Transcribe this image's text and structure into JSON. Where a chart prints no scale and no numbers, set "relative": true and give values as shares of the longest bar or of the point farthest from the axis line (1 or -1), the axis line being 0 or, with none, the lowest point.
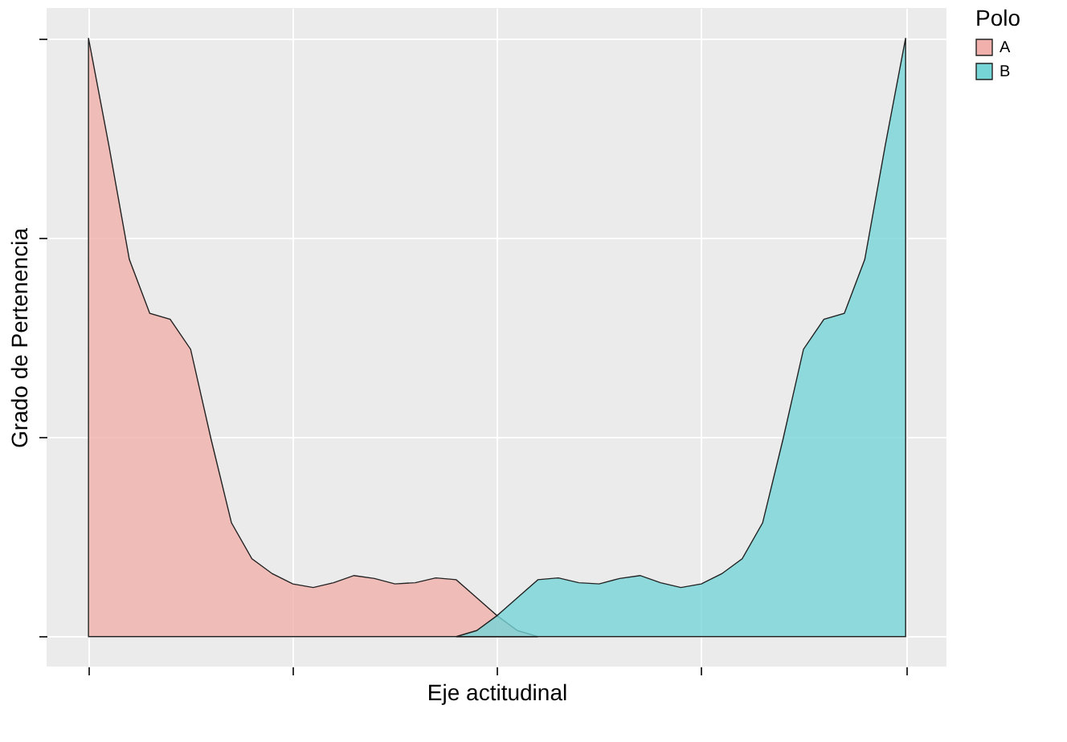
{
  "chart_data": {
    "type": "area",
    "relative": true,
    "xlabel": "Eje actitudinal",
    "ylabel": "Grado de Pertenencia",
    "legend_title": "Polo",
    "legend": "right",
    "grid": true,
    "categories": [
      null,
      null,
      null,
      null,
      null,
      null,
      null,
      null,
      null,
      null,
      null,
      null,
      null,
      null,
      null,
      null,
      null,
      null,
      null,
      null,
      null,
      null,
      null,
      null,
      null,
      null,
      null,
      null,
      null,
      null,
      null,
      null,
      null,
      null,
      null,
      null,
      null,
      null,
      null,
      null,
      null
    ],
    "series": [
      {
        "name": "A",
        "color": "#f1b0ab",
        "values": [
          1.0,
          0.82,
          0.63,
          0.54,
          0.53,
          0.48,
          0.33,
          0.19,
          0.13,
          0.105,
          0.088,
          0.082,
          0.09,
          0.102,
          0.097,
          0.088,
          0.09,
          0.098,
          0.095,
          0.065,
          0.035,
          0.01,
          0,
          null,
          null,
          null,
          null,
          null,
          null,
          null,
          null,
          null,
          null,
          null,
          null,
          null,
          null,
          null,
          null,
          null,
          null
        ]
      },
      {
        "name": "B",
        "color": "#75d5d7",
        "values": [
          null,
          null,
          null,
          null,
          null,
          null,
          null,
          null,
          null,
          null,
          null,
          null,
          null,
          null,
          null,
          null,
          null,
          null,
          0,
          0.01,
          0.035,
          0.065,
          0.095,
          0.098,
          0.09,
          0.088,
          0.097,
          0.102,
          0.09,
          0.082,
          0.088,
          0.105,
          0.13,
          0.19,
          0.33,
          0.48,
          0.53,
          0.54,
          0.63,
          0.82,
          1.0
        ]
      }
    ]
  }
}
